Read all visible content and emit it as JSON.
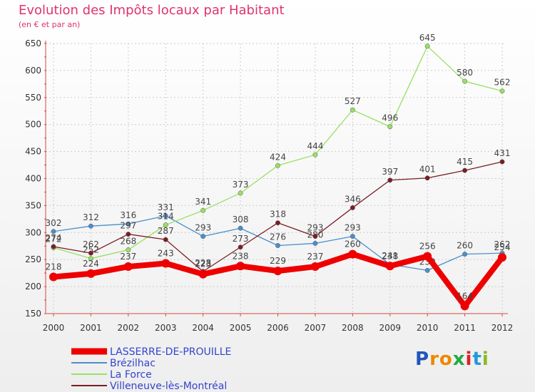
{
  "header": {
    "title": "Evolution des Impôts locaux par Habitant",
    "subtitle": "(en € et par an)"
  },
  "chart_data": {
    "type": "line",
    "title": "Evolution des Impôts locaux par Habitant",
    "subtitle": "(en € et par an)",
    "xlabel": "",
    "ylabel": "",
    "ylim": [
      150,
      650
    ],
    "yticks": [
      150,
      200,
      250,
      300,
      350,
      400,
      450,
      500,
      550,
      600,
      650
    ],
    "grid": true,
    "legend_position": "bottom-left",
    "categories": [
      "2000",
      "2001",
      "2002",
      "2003",
      "2004",
      "2005",
      "2006",
      "2007",
      "2008",
      "2009",
      "2010",
      "2011",
      "2012"
    ],
    "series": [
      {
        "name": "Brézilhac",
        "color": "#4a8fcc",
        "values": [
          302,
          312,
          316,
          331,
          293,
          308,
          276,
          280,
          293,
          241,
          230,
          260,
          262
        ]
      },
      {
        "name": "La Force",
        "color": "#99e066",
        "values": [
          272,
          252,
          268,
          314,
          341,
          373,
          424,
          444,
          527,
          496,
          645,
          580,
          562
        ]
      },
      {
        "name": "Villeneuve-lès-Montréal",
        "color": "#7a1e24",
        "values": [
          274,
          262,
          297,
          287,
          228,
          273,
          318,
          293,
          346,
          397,
          401,
          415,
          431
        ]
      },
      {
        "name": "LASSERRE-DE-PROUILLE",
        "color": "#ee0000",
        "values": [
          218,
          224,
          237,
          243,
          223,
          238,
          229,
          237,
          260,
          238,
          256,
          164,
          254
        ]
      }
    ]
  },
  "logo": {
    "text": "Proxiti",
    "letters": [
      "P",
      "r",
      "o",
      "x",
      "i",
      "t",
      "i"
    ],
    "colors": [
      "#2255bb",
      "#ee8800",
      "#ee8800",
      "#22aa44",
      "#dd2222",
      "#2299dd",
      "#88bb22"
    ]
  }
}
